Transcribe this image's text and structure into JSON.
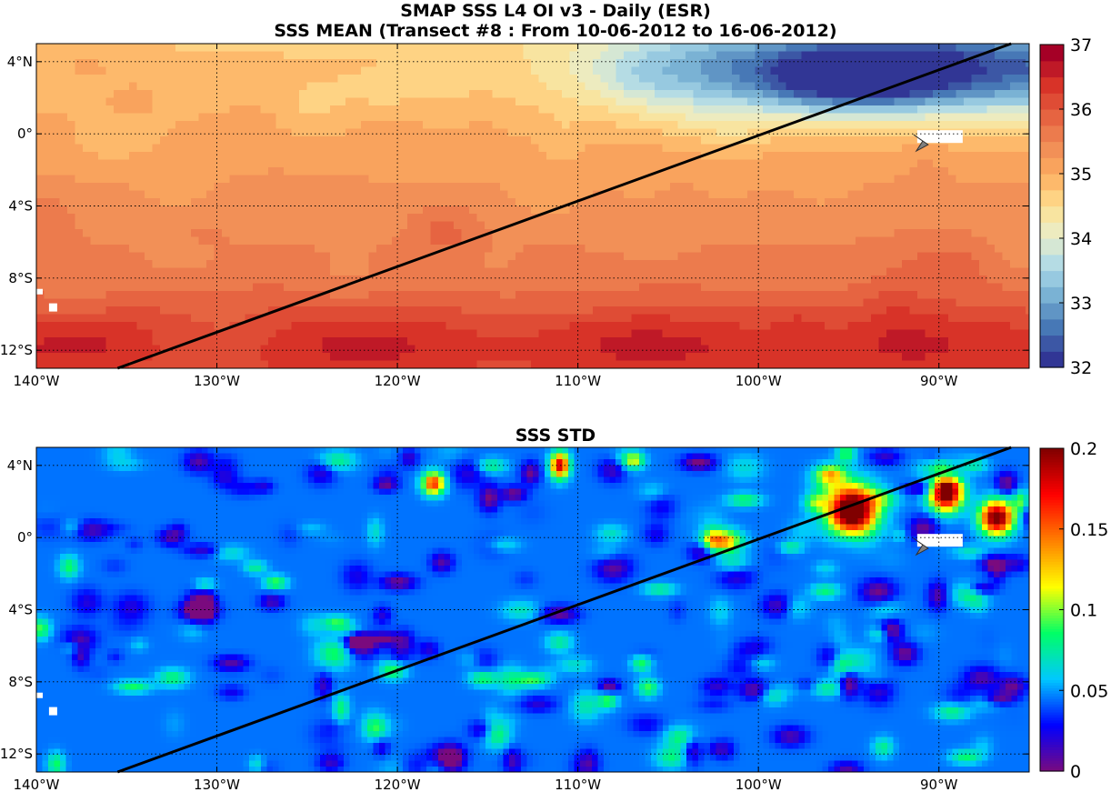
{
  "titles": {
    "line1": "SMAP SSS L4 OI v3 - Daily (ESR)",
    "line2": "SSS MEAN (Transect #8 : From 10-06-2012 to 16-06-2012)",
    "line3": "SSS STD"
  },
  "colors": {
    "transect": "#000000",
    "land_marker": "#808080",
    "mean_ramp": [
      "#313695",
      "#4575b4",
      "#74add1",
      "#abd9e9",
      "#e8eecb",
      "#fee090",
      "#fdae61",
      "#f08a55",
      "#e5603f",
      "#d73027",
      "#a50026"
    ],
    "std_ramp": [
      "#7a0a7e",
      "#0000ff",
      "#00c8ff",
      "#00ff66",
      "#ffff00",
      "#ff8000",
      "#ff0000",
      "#800000"
    ]
  },
  "chart_data": [
    {
      "type": "heatmap",
      "name": "mean",
      "xlabel": "",
      "ylabel": "",
      "xlim": [
        -140,
        -85
      ],
      "ylim": [
        -13,
        5
      ],
      "x_ticks": [
        -140,
        -130,
        -120,
        -110,
        -100,
        -90
      ],
      "x_tick_labels": [
        "140°W",
        "130°W",
        "120°W",
        "110°W",
        "100°W",
        "90°W"
      ],
      "y_ticks": [
        4,
        0,
        -4,
        -8,
        -12
      ],
      "y_tick_labels": [
        "4°N",
        "0°",
        "4°S",
        "8°S",
        "12°S"
      ],
      "grid": true,
      "colorbar": {
        "range": [
          32,
          37
        ],
        "ticks": [
          32,
          33,
          34,
          35,
          36,
          37
        ],
        "tick_labels": [
          "32",
          "33",
          "34",
          "35",
          "36",
          "37"
        ],
        "levels": 20
      },
      "transect": {
        "start": [
          -135.5,
          -13
        ],
        "end": [
          -86,
          5
        ]
      },
      "land_marker": {
        "lon": -91,
        "lat": -0.5
      }
    },
    {
      "type": "heatmap",
      "name": "std",
      "xlabel": "",
      "ylabel": "",
      "xlim": [
        -140,
        -85
      ],
      "ylim": [
        -13,
        5
      ],
      "x_ticks": [
        -140,
        -130,
        -120,
        -110,
        -100,
        -90
      ],
      "x_tick_labels": [
        "140°W",
        "130°W",
        "120°W",
        "110°W",
        "100°W",
        "90°W"
      ],
      "y_ticks": [
        4,
        0,
        -4,
        -8,
        -12
      ],
      "y_tick_labels": [
        "4°N",
        "0°",
        "4°S",
        "8°S",
        "12°S"
      ],
      "grid": true,
      "colorbar": {
        "range": [
          0,
          0.2
        ],
        "ticks": [
          0,
          0.05,
          0.1,
          0.15,
          0.2
        ],
        "tick_labels": [
          "0",
          "0.05",
          "0.1",
          "0.15",
          "0.2"
        ]
      },
      "transect": {
        "start": [
          -135.5,
          -13
        ],
        "end": [
          -86,
          5
        ]
      },
      "land_marker": {
        "lon": -91,
        "lat": -0.5
      }
    }
  ]
}
